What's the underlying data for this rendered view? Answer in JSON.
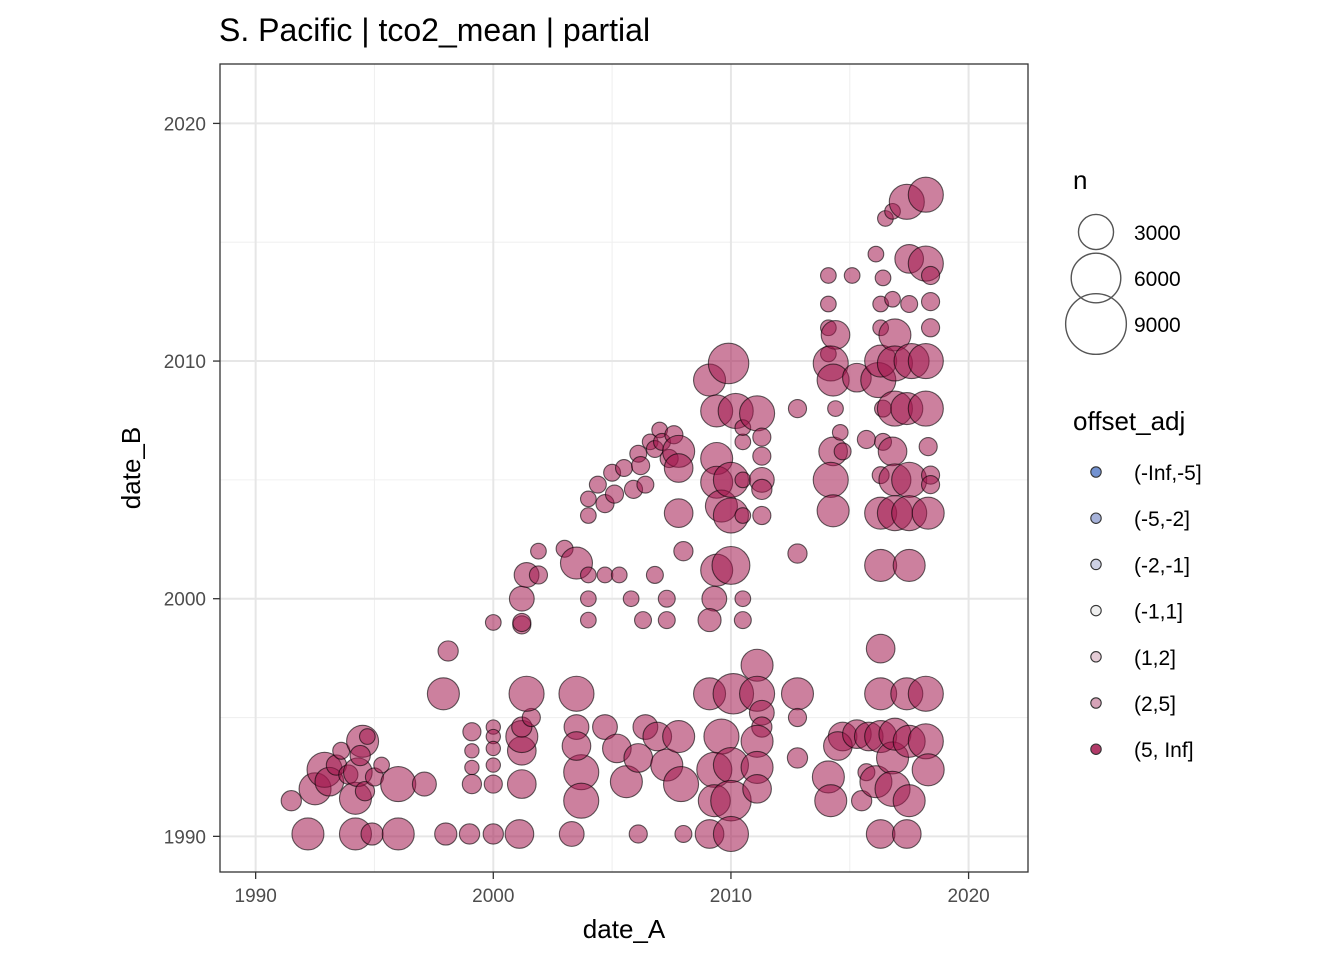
{
  "chart_data": {
    "type": "scatter",
    "title": "S. Pacific | tco2_mean | partial",
    "xlabel": "date_A",
    "ylabel": "date_B",
    "xlim": [
      1988.5,
      2022.5
    ],
    "ylim": [
      1988.5,
      2022.5
    ],
    "xticks": [
      1990,
      2000,
      2010,
      2020
    ],
    "yticks": [
      1990,
      2000,
      2010,
      2020
    ],
    "grid": true,
    "size_legend": {
      "title": "n",
      "entries": [
        {
          "label": "3000",
          "value": 3000
        },
        {
          "label": "6000",
          "value": 6000
        },
        {
          "label": "9000",
          "value": 9000
        }
      ]
    },
    "color_legend": {
      "title": "offset_adj",
      "entries": [
        {
          "label": "(-Inf,-5]",
          "color": "#5b7fc9"
        },
        {
          "label": "(-5,-2]",
          "color": "#97a5d4"
        },
        {
          "label": "(-2,-1]",
          "color": "#c6c9df"
        },
        {
          "label": "(-1,1]",
          "color": "#ebebeb"
        },
        {
          "label": "(1,2]",
          "color": "#e0c3cf"
        },
        {
          "label": "(2,5]",
          "color": "#cf93ab"
        },
        {
          "label": "(5, Inf]",
          "color": "#a3174e"
        }
      ]
    },
    "point_color": "#a3174e",
    "points": [
      [
        1991.5,
        1991.5,
        1000
      ],
      [
        1992.2,
        1990.1,
        2500
      ],
      [
        1992.5,
        1992.0,
        2500
      ],
      [
        1992.9,
        1992.8,
        3000
      ],
      [
        1993.1,
        1992.3,
        2000
      ],
      [
        1993.4,
        1993.0,
        1000
      ],
      [
        1993.6,
        1993.6,
        700
      ],
      [
        1993.9,
        1992.6,
        900
      ],
      [
        1994.2,
        1990.1,
        2500
      ],
      [
        1994.2,
        1991.6,
        2500
      ],
      [
        1994.3,
        1992.7,
        2000
      ],
      [
        1994.5,
        1994.0,
        2500
      ],
      [
        1994.4,
        1993.4,
        1000
      ],
      [
        1994.7,
        1994.2,
        600
      ],
      [
        1994.6,
        1991.9,
        900
      ],
      [
        1994.9,
        1990.1,
        1200
      ],
      [
        1995.0,
        1992.5,
        800
      ],
      [
        1995.3,
        1993.0,
        600
      ],
      [
        1996.0,
        1992.2,
        3000
      ],
      [
        1996.0,
        1990.1,
        2500
      ],
      [
        1997.1,
        1992.2,
        1400
      ],
      [
        1997.9,
        1996.0,
        2500
      ],
      [
        1998.1,
        1997.8,
        1000
      ],
      [
        1998.0,
        1990.1,
        1200
      ],
      [
        1999.0,
        1990.1,
        1000
      ],
      [
        1999.1,
        1994.4,
        800
      ],
      [
        1999.1,
        1993.6,
        500
      ],
      [
        1999.1,
        1992.9,
        500
      ],
      [
        1999.1,
        1992.2,
        900
      ],
      [
        2000.0,
        1999.0,
        600
      ],
      [
        2000.0,
        1994.6,
        500
      ],
      [
        2000.0,
        1994.2,
        500
      ],
      [
        2000.0,
        1993.7,
        500
      ],
      [
        2000.0,
        1993.0,
        500
      ],
      [
        2000.0,
        1992.2,
        800
      ],
      [
        2000.0,
        1990.1,
        1000
      ],
      [
        2001.1,
        1990.1,
        2000
      ],
      [
        2001.2,
        1992.2,
        2000
      ],
      [
        2001.2,
        1993.6,
        2000
      ],
      [
        2001.2,
        1994.2,
        2500
      ],
      [
        2001.2,
        1994.6,
        1000
      ],
      [
        2001.2,
        1998.9,
        800
      ],
      [
        2001.2,
        1999.0,
        800
      ],
      [
        2001.2,
        2000.0,
        1500
      ],
      [
        2001.4,
        2001.0,
        1500
      ],
      [
        2001.6,
        1995.0,
        800
      ],
      [
        2001.4,
        1996.0,
        3000
      ],
      [
        2001.9,
        2001.0,
        800
      ],
      [
        2001.9,
        2002.0,
        600
      ],
      [
        2003.0,
        2002.1,
        700
      ],
      [
        2003.5,
        1996.0,
        3000
      ],
      [
        2003.5,
        2001.5,
        2500
      ],
      [
        2003.7,
        1992.7,
        3000
      ],
      [
        2003.7,
        1991.5,
        3000
      ],
      [
        2003.3,
        1990.1,
        1500
      ],
      [
        2003.5,
        1994.6,
        1500
      ],
      [
        2003.5,
        1993.8,
        2000
      ],
      [
        2004.0,
        2004.2,
        600
      ],
      [
        2004.0,
        2003.5,
        600
      ],
      [
        2004.4,
        2004.8,
        700
      ],
      [
        2004.7,
        2004.0,
        800
      ],
      [
        2005.0,
        2005.3,
        700
      ],
      [
        2005.1,
        2004.4,
        800
      ],
      [
        2005.5,
        2005.5,
        700
      ],
      [
        2005.9,
        2004.6,
        800
      ],
      [
        2006.1,
        2006.1,
        700
      ],
      [
        2006.2,
        2005.6,
        800
      ],
      [
        2006.4,
        2004.8,
        700
      ],
      [
        2006.6,
        2006.6,
        600
      ],
      [
        2006.8,
        2006.3,
        700
      ],
      [
        2007.0,
        2007.1,
        600
      ],
      [
        2007.1,
        2006.6,
        700
      ],
      [
        2007.4,
        2005.9,
        800
      ],
      [
        2007.6,
        2006.9,
        800
      ],
      [
        2007.8,
        2006.2,
        2500
      ],
      [
        2007.8,
        2003.6,
        2000
      ],
      [
        2007.8,
        2005.5,
        2000
      ],
      [
        2008.0,
        2002.0,
        900
      ],
      [
        2004.0,
        2001.0,
        600
      ],
      [
        2004.0,
        2000.0,
        600
      ],
      [
        2004.0,
        1999.1,
        600
      ],
      [
        2004.7,
        2001.0,
        600
      ],
      [
        2005.3,
        2001.0,
        600
      ],
      [
        2005.8,
        2000.0,
        600
      ],
      [
        2006.3,
        1999.1,
        700
      ],
      [
        2006.8,
        2001.0,
        700
      ],
      [
        2007.3,
        2000.0,
        700
      ],
      [
        2007.3,
        1999.1,
        700
      ],
      [
        2004.7,
        1994.6,
        1500
      ],
      [
        2005.2,
        1993.7,
        2000
      ],
      [
        2005.6,
        1992.3,
        2500
      ],
      [
        2006.1,
        1993.3,
        2000
      ],
      [
        2006.4,
        1994.6,
        1500
      ],
      [
        2006.9,
        1994.2,
        2000
      ],
      [
        2007.3,
        1993.0,
        2500
      ],
      [
        2007.9,
        1992.2,
        3000
      ],
      [
        2007.8,
        1994.2,
        2500
      ],
      [
        2008.0,
        1990.1,
        700
      ],
      [
        2006.1,
        1990.1,
        800
      ],
      [
        2009.1,
        2009.2,
        2500
      ],
      [
        2009.4,
        2007.9,
        2500
      ],
      [
        2009.4,
        2005.9,
        2500
      ],
      [
        2009.4,
        2004.9,
        2500
      ],
      [
        2009.6,
        2003.9,
        2500
      ],
      [
        2009.4,
        2001.2,
        2500
      ],
      [
        2009.3,
        2000.0,
        1500
      ],
      [
        2009.1,
        1999.1,
        1300
      ],
      [
        2009.1,
        1996.0,
        2500
      ],
      [
        2009.6,
        1994.2,
        3000
      ],
      [
        2009.3,
        1992.8,
        3000
      ],
      [
        2009.3,
        1991.5,
        2500
      ],
      [
        2009.1,
        1990.1,
        2000
      ],
      [
        2009.9,
        2009.9,
        4000
      ],
      [
        2010.2,
        2007.9,
        3000
      ],
      [
        2010.0,
        2005.0,
        3000
      ],
      [
        2010.0,
        2003.5,
        3000
      ],
      [
        2010.0,
        2001.4,
        3500
      ],
      [
        2010.1,
        1996.0,
        4000
      ],
      [
        2010.0,
        1993.0,
        3000
      ],
      [
        2010.0,
        1991.5,
        4000
      ],
      [
        2010.0,
        1990.1,
        3000
      ],
      [
        2010.5,
        1999.1,
        700
      ],
      [
        2010.5,
        2000.0,
        600
      ],
      [
        2010.5,
        2003.5,
        600
      ],
      [
        2010.5,
        2005.0,
        600
      ],
      [
        2010.5,
        2006.6,
        600
      ],
      [
        2010.5,
        2007.2,
        600
      ],
      [
        2011.1,
        2007.8,
        3000
      ],
      [
        2011.3,
        2006.8,
        800
      ],
      [
        2011.3,
        2006.0,
        800
      ],
      [
        2011.3,
        2005.0,
        1500
      ],
      [
        2011.3,
        2004.6,
        1000
      ],
      [
        2011.3,
        2003.5,
        800
      ],
      [
        2011.1,
        1997.2,
        2500
      ],
      [
        2011.1,
        1996.0,
        3000
      ],
      [
        2011.3,
        1995.2,
        1500
      ],
      [
        2011.3,
        1994.6,
        1000
      ],
      [
        2011.1,
        1994.0,
        2500
      ],
      [
        2011.1,
        1992.9,
        2500
      ],
      [
        2011.1,
        1992.0,
        2000
      ],
      [
        2012.8,
        2008.0,
        800
      ],
      [
        2012.8,
        2001.9,
        900
      ],
      [
        2012.8,
        1996.0,
        2500
      ],
      [
        2012.8,
        1995.0,
        800
      ],
      [
        2012.8,
        1993.3,
        1000
      ],
      [
        2014.1,
        2013.6,
        600
      ],
      [
        2014.1,
        2012.4,
        600
      ],
      [
        2014.1,
        2011.4,
        600
      ],
      [
        2014.1,
        2010.3,
        600
      ],
      [
        2014.4,
        2011.1,
        2000
      ],
      [
        2014.2,
        2009.9,
        3000
      ],
      [
        2014.3,
        2009.2,
        2500
      ],
      [
        2014.3,
        2006.2,
        2000
      ],
      [
        2014.2,
        2005.0,
        3000
      ],
      [
        2014.3,
        2003.7,
        2500
      ],
      [
        2014.4,
        2008.0,
        600
      ],
      [
        2014.6,
        2007.0,
        600
      ],
      [
        2014.7,
        2006.2,
        700
      ],
      [
        2014.7,
        1994.2,
        2000
      ],
      [
        2014.5,
        1993.8,
        2000
      ],
      [
        2014.1,
        1992.5,
        2500
      ],
      [
        2014.2,
        1991.5,
        2500
      ],
      [
        2015.1,
        2013.6,
        600
      ],
      [
        2015.3,
        2009.3,
        2000
      ],
      [
        2015.3,
        1994.3,
        2000
      ],
      [
        2015.8,
        1994.2,
        2000
      ],
      [
        2015.7,
        2006.7,
        800
      ],
      [
        2015.5,
        1991.5,
        1000
      ],
      [
        2015.7,
        1992.7,
        700
      ],
      [
        2016.1,
        2014.5,
        600
      ],
      [
        2016.4,
        2013.5,
        600
      ],
      [
        2016.3,
        2012.4,
        600
      ],
      [
        2016.3,
        2011.4,
        600
      ],
      [
        2016.2,
        2009.2,
        3000
      ],
      [
        2016.3,
        2010.0,
        2500
      ],
      [
        2016.4,
        2008.0,
        700
      ],
      [
        2016.4,
        2006.6,
        700
      ],
      [
        2016.3,
        2005.2,
        700
      ],
      [
        2016.3,
        2003.6,
        2500
      ],
      [
        2016.3,
        2001.4,
        2500
      ],
      [
        2016.3,
        1997.9,
        2000
      ],
      [
        2016.3,
        1996.0,
        2500
      ],
      [
        2016.3,
        1994.2,
        2500
      ],
      [
        2016.1,
        1992.3,
        2500
      ],
      [
        2016.3,
        1990.1,
        2000
      ],
      [
        2016.5,
        2016.0,
        600
      ],
      [
        2016.8,
        2016.3,
        600
      ],
      [
        2016.9,
        2011.1,
        2500
      ],
      [
        2016.8,
        2012.6,
        600
      ],
      [
        2016.9,
        2009.9,
        3000
      ],
      [
        2016.9,
        2008.0,
        3000
      ],
      [
        2016.8,
        2006.2,
        2000
      ],
      [
        2016.9,
        2005.0,
        2500
      ],
      [
        2016.9,
        2003.6,
        3000
      ],
      [
        2016.8,
        1993.3,
        2500
      ],
      [
        2016.8,
        1992.0,
        3000
      ],
      [
        2016.9,
        1994.3,
        2500
      ],
      [
        2017.4,
        2016.7,
        3000
      ],
      [
        2017.5,
        2014.3,
        2000
      ],
      [
        2017.5,
        2012.4,
        700
      ],
      [
        2017.6,
        2010.0,
        3000
      ],
      [
        2017.4,
        2008.0,
        2500
      ],
      [
        2017.5,
        2005.0,
        3000
      ],
      [
        2017.5,
        2003.6,
        3000
      ],
      [
        2017.5,
        2001.4,
        2500
      ],
      [
        2017.4,
        1996.0,
        2500
      ],
      [
        2017.5,
        1994.0,
        2500
      ],
      [
        2017.5,
        1991.5,
        2500
      ],
      [
        2017.4,
        1990.1,
        2000
      ],
      [
        2018.2,
        2017.0,
        3000
      ],
      [
        2018.2,
        2014.1,
        3000
      ],
      [
        2018.4,
        2013.6,
        800
      ],
      [
        2018.4,
        2012.5,
        800
      ],
      [
        2018.4,
        2011.4,
        800
      ],
      [
        2018.2,
        2010.0,
        3000
      ],
      [
        2018.2,
        2008.0,
        3000
      ],
      [
        2018.3,
        2006.4,
        800
      ],
      [
        2018.4,
        2005.2,
        800
      ],
      [
        2018.4,
        2004.8,
        800
      ],
      [
        2018.3,
        2003.6,
        2500
      ],
      [
        2018.2,
        1996.0,
        3000
      ],
      [
        2018.2,
        1994.0,
        3000
      ],
      [
        2018.3,
        1992.8,
        2500
      ]
    ]
  }
}
